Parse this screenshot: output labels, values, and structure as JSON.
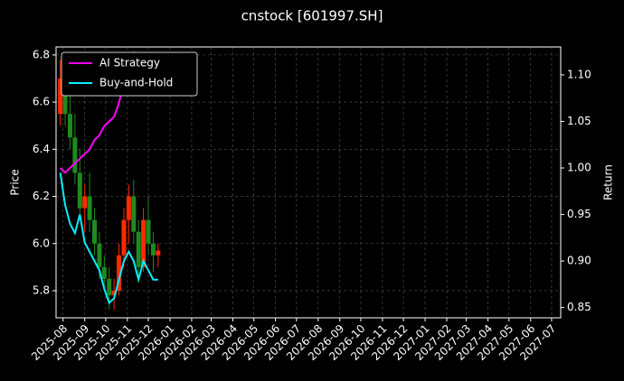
{
  "chart_data": {
    "type": "candlestick",
    "title": "cnstock [601997.SH]",
    "ylabel": "Price",
    "y2label": "Return",
    "grid": true,
    "legend": "upper left",
    "up_color": "#ff2a00",
    "down_color": "#1f8a1f",
    "xlim": [
      "2025-07-22",
      "2027-07-14"
    ],
    "xticks": [
      "2025-08",
      "2025-09",
      "2025-10",
      "2025-11",
      "2025-12",
      "2026-01",
      "2026-02",
      "2026-03",
      "2026-04",
      "2026-05",
      "2026-06",
      "2026-07",
      "2026-08",
      "2026-09",
      "2026-10",
      "2026-11",
      "2026-12",
      "2027-01",
      "2027-02",
      "2027-03",
      "2027-04",
      "2027-05",
      "2027-06",
      "2027-07"
    ],
    "ylim": [
      5.685,
      6.834
    ],
    "yticks": [
      5.8,
      {
        "value": 6,
        "label": "6.0"
      },
      6.2,
      6.4,
      6.6,
      6.8
    ],
    "y2lim": [
      0.839,
      1.13
    ],
    "y2ticks": [
      0.85,
      {
        "value": 0.9,
        "label": "0.90"
      },
      0.95,
      {
        "value": 1,
        "label": "1.00"
      },
      1.05,
      {
        "value": 1.1,
        "label": "1.10"
      }
    ],
    "x": [
      "2025-07-28",
      "2025-08-04",
      "2025-08-11",
      "2025-08-18",
      "2025-08-25",
      "2025-09-01",
      "2025-09-08",
      "2025-09-15",
      "2025-09-22",
      "2025-09-29",
      "2025-10-06",
      "2025-10-13",
      "2025-10-20",
      "2025-10-27",
      "2025-11-03",
      "2025-11-10",
      "2025-11-17",
      "2025-11-24",
      "2025-12-01",
      "2025-12-08",
      "2025-12-15"
    ],
    "open": [
      6.55,
      6.7,
      6.55,
      6.45,
      6.3,
      6.15,
      6.2,
      6.1,
      6.0,
      5.9,
      5.85,
      5.78,
      5.8,
      5.95,
      6.1,
      6.2,
      6.05,
      5.9,
      6.1,
      6.0,
      5.95
    ],
    "high": [
      6.78,
      6.75,
      6.65,
      6.55,
      6.4,
      6.25,
      6.3,
      6.15,
      6.05,
      5.95,
      5.9,
      5.85,
      6.0,
      6.15,
      6.25,
      6.27,
      6.1,
      6.15,
      6.2,
      6.05,
      6.0
    ],
    "low": [
      6.5,
      6.5,
      6.4,
      6.25,
      6.1,
      6.05,
      6.05,
      5.95,
      5.85,
      5.8,
      5.72,
      5.72,
      5.78,
      5.9,
      6.0,
      6.0,
      5.85,
      5.88,
      5.95,
      5.88,
      5.9
    ],
    "close": [
      6.7,
      6.55,
      6.45,
      6.3,
      6.15,
      6.2,
      6.1,
      6.0,
      5.9,
      5.85,
      5.78,
      5.8,
      5.95,
      6.1,
      6.2,
      6.05,
      5.9,
      6.1,
      6.0,
      5.95,
      5.97
    ],
    "series": [
      {
        "name": "AI Strategy",
        "color": "#ff00ff",
        "axis": "y2",
        "values": [
          1.0,
          0.995,
          1.0,
          1.005,
          1.01,
          1.015,
          1.02,
          1.03,
          1.035,
          1.045,
          1.05,
          1.055,
          1.07,
          1.09,
          1.11,
          1.125,
          null,
          null,
          null,
          null,
          null
        ]
      },
      {
        "name": "Buy-and-Hold",
        "color": "#00f0ff",
        "axis": "y2",
        "values": [
          0.995,
          0.96,
          0.94,
          0.93,
          0.95,
          0.92,
          0.91,
          0.9,
          0.89,
          0.87,
          0.855,
          0.86,
          0.88,
          0.9,
          0.91,
          0.9,
          0.88,
          0.9,
          0.89,
          0.88,
          0.88
        ]
      }
    ]
  }
}
